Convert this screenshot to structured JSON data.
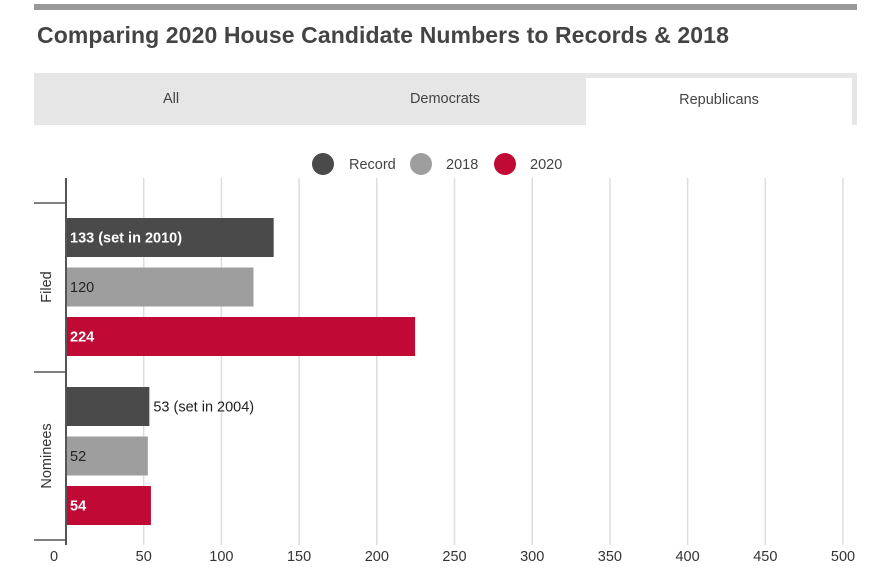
{
  "title": "Comparing 2020 House Candidate Numbers to Records & 2018",
  "tabs": [
    {
      "label": "All",
      "active": false
    },
    {
      "label": "Democrats",
      "active": false
    },
    {
      "label": "Republicans",
      "active": true
    }
  ],
  "colors": {
    "record": "#4a4a4a",
    "y2018": "#9e9e9e",
    "y2020": "#c00a35",
    "grid": "#dddddd",
    "axis": "#555555"
  },
  "chart_data": {
    "type": "bar",
    "orientation": "horizontal",
    "xlim": [
      0,
      500
    ],
    "xticks": [
      0,
      50,
      100,
      150,
      200,
      250,
      300,
      350,
      400,
      450,
      500
    ],
    "tick_labels": [
      "0",
      "50",
      "100",
      "150",
      "200",
      "250",
      "300",
      "350",
      "400",
      "450",
      "500"
    ],
    "categories": [
      "Filed",
      "Nominees"
    ],
    "legend": [
      "Record",
      "2018",
      "2020"
    ],
    "legend_position": "top-center",
    "series": [
      {
        "name": "Record",
        "values": [
          133,
          53
        ],
        "labels": [
          "133 (set in 2010)",
          "53 (set in 2004)"
        ]
      },
      {
        "name": "2018",
        "values": [
          120,
          52
        ],
        "labels": [
          "120",
          "52"
        ]
      },
      {
        "name": "2020",
        "values": [
          224,
          54
        ],
        "labels": [
          "224",
          "54"
        ]
      }
    ]
  }
}
